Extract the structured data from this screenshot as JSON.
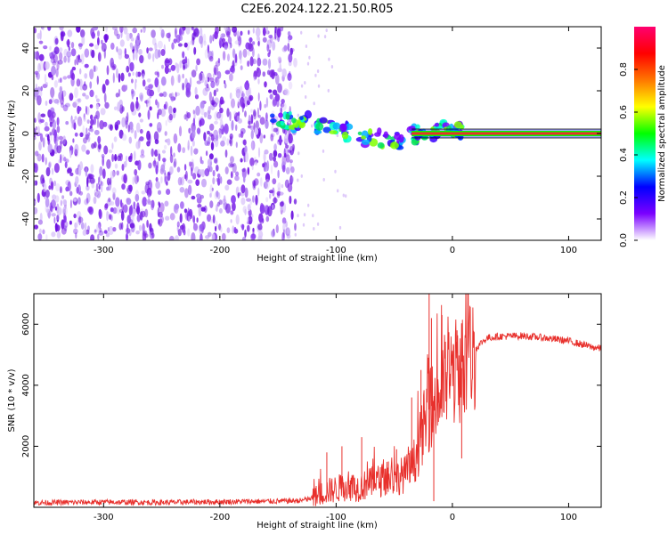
{
  "title": "C2E6.2024.122.21.50.R05",
  "colors": {
    "snr_line": "#e8302c",
    "strong_line": "#e8302c",
    "noise": "#7a1fe6",
    "axis": "#000000"
  },
  "chart_data": [
    {
      "type": "heatmap",
      "xlabel": "Height of straight line (km)",
      "ylabel": "Frequency (Hz)",
      "xlim": [
        -360,
        128
      ],
      "ylim": [
        -50,
        50
      ],
      "xticks": [
        -300,
        -200,
        -100,
        0,
        100
      ],
      "xtick_labels": [
        "-300",
        "-200",
        "-100",
        "0",
        "100"
      ],
      "yticks": [
        40,
        20,
        0,
        -20,
        -40
      ],
      "ytick_labels": [
        "40",
        "20",
        "0",
        "-20",
        "-40"
      ],
      "colorbar": {
        "label": "Normalized spectral amplitude",
        "range": [
          0,
          1
        ],
        "ticks": [
          0.0,
          0.2,
          0.4,
          0.6,
          0.8
        ],
        "tick_labels": [
          "0.0",
          "0.2",
          "0.4",
          "0.6",
          "0.8"
        ],
        "stops": [
          "#ffffff",
          "#7a00ff",
          "#0000ff",
          "#00ffff",
          "#00ff00",
          "#ffff00",
          "#ff7700",
          "#ff0000",
          "#ff0070"
        ]
      },
      "noise_region": {
        "x_from": -360,
        "x_to": -135
      },
      "signal_track": [
        {
          "x": -155,
          "y": 10
        },
        {
          "x": -140,
          "y": 6
        },
        {
          "x": -120,
          "y": 5
        },
        {
          "x": -100,
          "y": 3
        },
        {
          "x": -80,
          "y": -2
        },
        {
          "x": -60,
          "y": -3
        },
        {
          "x": -45,
          "y": -4
        },
        {
          "x": -30,
          "y": 0
        },
        {
          "x": -15,
          "y": 1
        },
        {
          "x": 0,
          "y": 2
        },
        {
          "x": 10,
          "y": 1
        }
      ],
      "strong_line": {
        "x_from": -35,
        "x_to": 128,
        "y": 0
      }
    },
    {
      "type": "line",
      "xlabel": "Height of straight line (km)",
      "ylabel": "SNR (10 * v/v)",
      "xlim": [
        -360,
        128
      ],
      "ylim": [
        0,
        7000
      ],
      "xticks": [
        -300,
        -200,
        -100,
        0,
        100
      ],
      "xtick_labels": [
        "-300",
        "-200",
        "-100",
        "0",
        "100"
      ],
      "yticks": [
        6000,
        4000,
        2000
      ],
      "ytick_labels": [
        "6000",
        "4000",
        "2000"
      ],
      "series": [
        {
          "name": "SNR",
          "x": [
            -360,
            -300,
            -250,
            -200,
            -150,
            -130,
            -120,
            -110,
            -100,
            -90,
            -80,
            -70,
            -60,
            -50,
            -40,
            -35,
            -30,
            -25,
            -20,
            -15,
            -10,
            -5,
            0,
            5,
            10,
            15,
            20,
            25,
            30,
            40,
            60,
            80,
            100,
            110,
            120,
            128
          ],
          "y": [
            150,
            170,
            160,
            180,
            200,
            220,
            300,
            500,
            600,
            700,
            650,
            800,
            900,
            950,
            1100,
            1300,
            1800,
            2600,
            3200,
            3500,
            3800,
            4200,
            4400,
            4500,
            4600,
            4900,
            5200,
            5400,
            5550,
            5600,
            5620,
            5550,
            5450,
            5350,
            5250,
            5200
          ]
        }
      ],
      "spikes": [
        {
          "x": -108,
          "y": 1800
        },
        {
          "x": -95,
          "y": 2000
        },
        {
          "x": -78,
          "y": 2300
        },
        {
          "x": -55,
          "y": 1500
        },
        {
          "x": -48,
          "y": 1900
        },
        {
          "x": -35,
          "y": 3600
        },
        {
          "x": -27,
          "y": 4500
        },
        {
          "x": -20,
          "y": 7000
        },
        {
          "x": -18,
          "y": 6200
        },
        {
          "x": -9,
          "y": 6300
        },
        {
          "x": 4,
          "y": 5800
        },
        {
          "x": 12,
          "y": 4800
        }
      ],
      "dips": [
        {
          "x": -16,
          "y": 200
        },
        {
          "x": -12,
          "y": 2800
        },
        {
          "x": 8,
          "y": 1600
        }
      ]
    }
  ]
}
